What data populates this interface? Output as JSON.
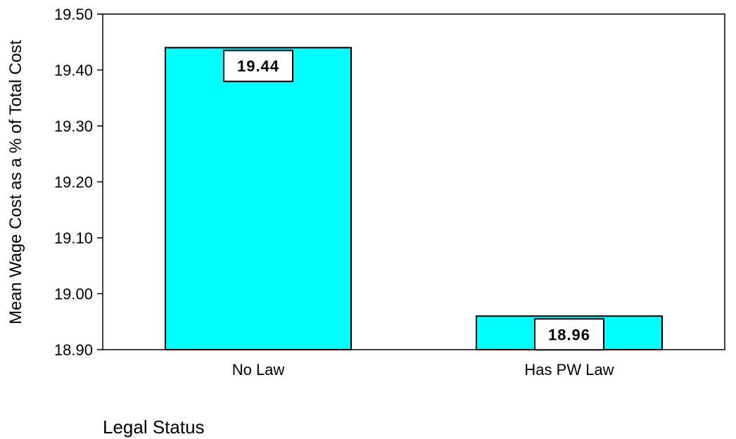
{
  "chart_data": {
    "type": "bar",
    "categories": [
      "No Law",
      "Has PW Law"
    ],
    "values": [
      19.44,
      18.96
    ],
    "data_labels": [
      "19.44",
      "18.96"
    ],
    "ylabel": "Mean Wage Cost as a % of Total Cost",
    "xlabel": "Legal Status",
    "ylim": [
      18.9,
      19.5
    ],
    "yticks": [
      18.9,
      19.0,
      19.1,
      19.2,
      19.3,
      19.4,
      19.5
    ],
    "ytick_labels": [
      "18.90",
      "19.00",
      "19.10",
      "19.20",
      "19.30",
      "19.40",
      "19.50"
    ],
    "grid": false,
    "legend": "none",
    "bar_color": "#00ffff",
    "border_color": "#000000"
  }
}
